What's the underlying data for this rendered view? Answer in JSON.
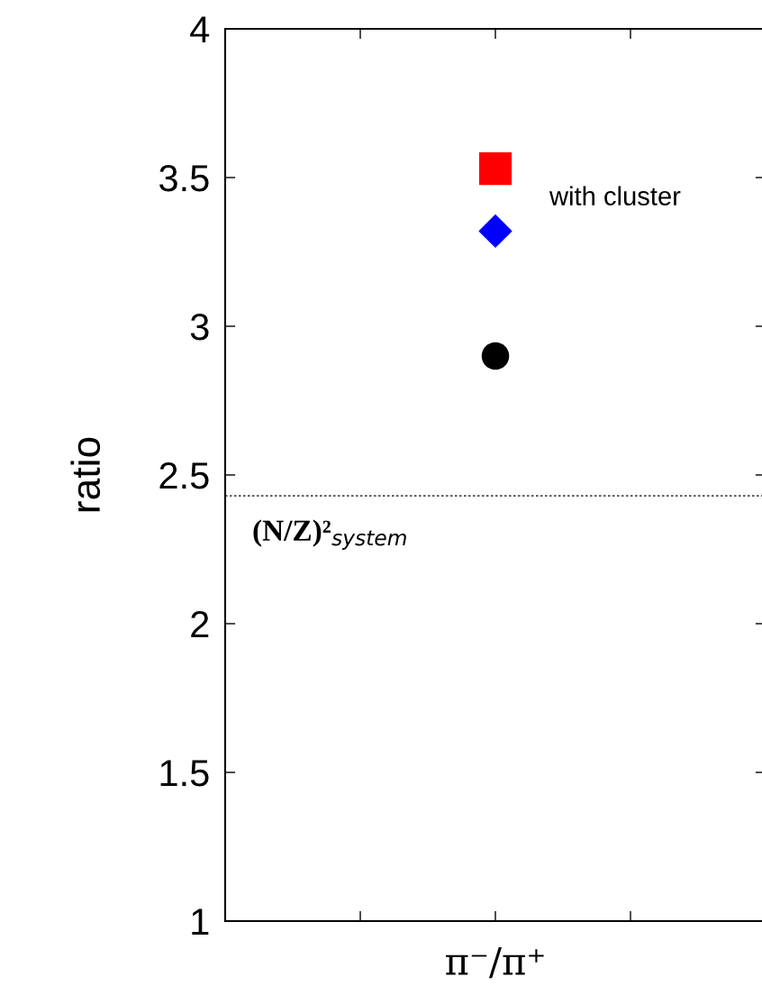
{
  "chart_data": {
    "type": "scatter",
    "ylabel": "ratio",
    "categories": [
      null,
      "π⁻/π⁺",
      null
    ],
    "series": [
      {
        "color": "#ff0000",
        "marker": "square",
        "values": [
          null,
          3.53,
          null
        ]
      },
      {
        "color": "#0000ff",
        "marker": "diamond",
        "values": [
          null,
          3.32,
          null
        ]
      },
      {
        "color": "#000000",
        "marker": "circle",
        "values": [
          null,
          2.9,
          null
        ]
      }
    ],
    "ylim": [
      1,
      4
    ],
    "yticks": [
      1,
      1.5,
      2,
      2.5,
      3,
      3.5,
      4
    ],
    "ref_lines": [
      {
        "axis": "y",
        "value": 2.43,
        "label": "(N/Z)²$_{system}$",
        "color": "#000000",
        "line_style": "dotted"
      }
    ],
    "annotations": [
      "with cluster"
    ],
    "grid": false,
    "legend": false
  }
}
